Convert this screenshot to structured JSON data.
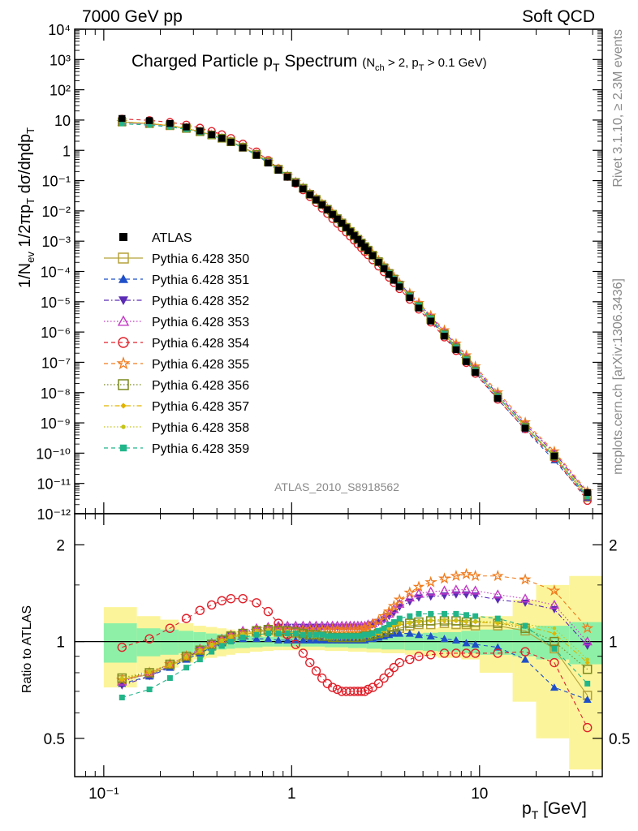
{
  "header": {
    "left": "7000 GeV pp",
    "right": "Soft QCD"
  },
  "title": {
    "main": "Charged Particle p",
    "main_sub": "T",
    "main_rest": " Spectrum",
    "cond_a": "(N",
    "cond_a_sub": "ch",
    "cond_b": " > 2, p",
    "cond_b_sub": "T",
    "cond_c": " > 0.1 GeV)"
  },
  "side_labels": {
    "rivet": "Rivet 3.1.10, ≥ 2.3M events",
    "mcplots": "mcplots.cern.ch [arXiv:1306.3436]"
  },
  "analysis_id": "ATLAS_2010_S8918562",
  "axis": {
    "ylabel_top": "1/N_ev 1/2πp_T dσ/dηdp_T",
    "ylabel_ratio": "Ratio to ATLAS",
    "xlabel": "p_T [GeV]",
    "x_ticks": [
      "10⁻¹",
      "1",
      "10"
    ],
    "y_top_ticks": [
      "10⁴",
      "10³",
      "10²",
      "10",
      "1",
      "10⁻¹",
      "10⁻²",
      "10⁻³",
      "10⁻⁴",
      "10⁻⁵",
      "10⁻⁶",
      "10⁻⁷",
      "10⁻⁸",
      "10⁻⁹",
      "10⁻¹⁰",
      "10⁻¹¹",
      "10⁻¹²"
    ],
    "y_ratio_ticks": [
      "2",
      "1",
      "0.5"
    ]
  },
  "legend": [
    {
      "label": "ATLAS",
      "color": "#000000",
      "marker": "square-filled",
      "dash": "none"
    },
    {
      "label": "Pythia 6.428 350",
      "color": "#b5a23a",
      "marker": "square-open",
      "dash": "solid"
    },
    {
      "label": "Pythia 6.428 351",
      "color": "#1f4fc8",
      "marker": "triangle-up-filled",
      "dash": "dashed"
    },
    {
      "label": "Pythia 6.428 352",
      "color": "#5b2bb5",
      "marker": "triangle-down-filled",
      "dash": "dashdot"
    },
    {
      "label": "Pythia 6.428 353",
      "color": "#c23bc4",
      "marker": "triangle-up-open",
      "dash": "dotted"
    },
    {
      "label": "Pythia 6.428 354",
      "color": "#e0202a",
      "marker": "circle-open",
      "dash": "dashed"
    },
    {
      "label": "Pythia 6.428 355",
      "color": "#f07c1e",
      "marker": "star-open",
      "dash": "dashed"
    },
    {
      "label": "Pythia 6.428 356",
      "color": "#7c8a1e",
      "marker": "square-open",
      "dash": "dotted"
    },
    {
      "label": "Pythia 6.428 357",
      "color": "#e0b400",
      "marker": "diamond-small",
      "dash": "dashdot"
    },
    {
      "label": "Pythia 6.428 358",
      "color": "#c4c41a",
      "marker": "dot",
      "dash": "dotted"
    },
    {
      "label": "Pythia 6.428 359",
      "color": "#22b58a",
      "marker": "square-filled-small",
      "dash": "dashed"
    }
  ],
  "chart_data": {
    "type": "scatter",
    "x_scale": "log",
    "xlim": [
      0.07,
      45
    ],
    "top_panel": {
      "y_scale": "log",
      "ylim": [
        1e-12,
        10000.0
      ],
      "data": {
        "x": [
          0.125,
          0.175,
          0.225,
          0.275,
          0.325,
          0.375,
          0.425,
          0.475,
          0.55,
          0.65,
          0.75,
          0.85,
          0.95,
          1.05,
          1.15,
          1.25,
          1.35,
          1.45,
          1.55,
          1.65,
          1.75,
          1.85,
          1.95,
          2.05,
          2.15,
          2.25,
          2.35,
          2.45,
          2.55,
          2.7,
          2.9,
          3.1,
          3.3,
          3.5,
          3.75,
          4.25,
          4.75,
          5.5,
          6.5,
          7.5,
          8.5,
          9.5,
          12.5,
          17.5,
          25.0,
          37.5
        ],
        "y": [
          11.3,
          9.6,
          7.7,
          5.9,
          4.4,
          3.3,
          2.5,
          1.85,
          1.2,
          0.68,
          0.38,
          0.22,
          0.13,
          0.082,
          0.053,
          0.034,
          0.023,
          0.0158,
          0.0109,
          0.0076,
          0.0054,
          0.0039,
          0.0028,
          0.00205,
          0.00152,
          0.00113,
          0.00085,
          0.00064,
          0.00049,
          0.00033,
          0.0002,
          0.000124,
          7.9e-05,
          5.1e-05,
          3.1e-05,
          1.35e-05,
          6.2e-06,
          2.3e-06,
          7.3e-07,
          2.6e-07,
          1.05e-07,
          4.6e-08,
          6.4e-09,
          6.7e-10,
          8e-11,
          5e-12
        ]
      }
    },
    "ratio_panel": {
      "y_scale": "log",
      "ylim": [
        0.38,
        2.5
      ],
      "band_x_edges": [
        0.1,
        0.15,
        0.2,
        0.25,
        0.3,
        0.35,
        0.4,
        0.45,
        0.5,
        0.6,
        0.7,
        0.8,
        0.9,
        1.0,
        1.5,
        2.0,
        2.5,
        3.0,
        4.0,
        5.0,
        6.0,
        8.0,
        10.0,
        15.0,
        20.0,
        30.0,
        45.0
      ],
      "band_inner": [
        0.14,
        0.1,
        0.09,
        0.08,
        0.07,
        0.06,
        0.055,
        0.05,
        0.045,
        0.04,
        0.035,
        0.035,
        0.035,
        0.035,
        0.04,
        0.045,
        0.05,
        0.055,
        0.06,
        0.065,
        0.07,
        0.08,
        0.09,
        0.1,
        0.12,
        0.15
      ],
      "band_outer": [
        0.28,
        0.2,
        0.17,
        0.14,
        0.12,
        0.11,
        0.1,
        0.09,
        0.08,
        0.07,
        0.065,
        0.06,
        0.06,
        0.06,
        0.065,
        0.07,
        0.075,
        0.08,
        0.09,
        0.1,
        0.11,
        0.12,
        0.2,
        0.35,
        0.5,
        0.6
      ],
      "series": [
        {
          "name": "Pythia 6.428 350",
          "ratio": [
            0.76,
            0.79,
            0.84,
            0.89,
            0.93,
            0.97,
            1.0,
            1.03,
            1.05,
            1.07,
            1.08,
            1.07,
            1.06,
            1.06,
            1.05,
            1.04,
            1.03,
            1.03,
            1.02,
            1.02,
            1.02,
            1.02,
            1.02,
            1.02,
            1.02,
            1.02,
            1.02,
            1.03,
            1.03,
            1.04,
            1.05,
            1.06,
            1.08,
            1.09,
            1.1,
            1.12,
            1.13,
            1.13,
            1.14,
            1.13,
            1.13,
            1.12,
            1.12,
            1.08,
            0.95,
            0.68
          ]
        },
        {
          "name": "Pythia 6.428 351",
          "ratio": [
            0.74,
            0.78,
            0.83,
            0.88,
            0.92,
            0.96,
            0.99,
            1.01,
            1.02,
            1.02,
            1.02,
            1.01,
            1.01,
            1.01,
            1.01,
            1.01,
            1.01,
            1.01,
            1.01,
            1.01,
            1.01,
            1.01,
            1.01,
            1.01,
            1.01,
            1.01,
            1.01,
            1.01,
            1.02,
            1.02,
            1.03,
            1.04,
            1.05,
            1.06,
            1.06,
            1.06,
            1.05,
            1.04,
            1.02,
            1.01,
            0.99,
            0.98,
            0.96,
            0.88,
            0.72,
            0.66
          ]
        },
        {
          "name": "Pythia 6.428 352",
          "ratio": [
            0.73,
            0.78,
            0.84,
            0.89,
            0.94,
            0.99,
            1.02,
            1.05,
            1.07,
            1.09,
            1.1,
            1.11,
            1.11,
            1.11,
            1.11,
            1.11,
            1.11,
            1.11,
            1.11,
            1.11,
            1.11,
            1.11,
            1.11,
            1.11,
            1.11,
            1.11,
            1.11,
            1.11,
            1.12,
            1.13,
            1.15,
            1.17,
            1.2,
            1.23,
            1.28,
            1.33,
            1.37,
            1.38,
            1.39,
            1.4,
            1.4,
            1.39,
            1.35,
            1.32,
            1.26,
            0.97
          ]
        },
        {
          "name": "Pythia 6.428 353",
          "ratio": [
            0.75,
            0.8,
            0.85,
            0.9,
            0.95,
            0.99,
            1.02,
            1.05,
            1.08,
            1.1,
            1.11,
            1.12,
            1.12,
            1.12,
            1.12,
            1.12,
            1.12,
            1.12,
            1.12,
            1.12,
            1.12,
            1.12,
            1.12,
            1.12,
            1.12,
            1.12,
            1.12,
            1.12,
            1.13,
            1.14,
            1.16,
            1.18,
            1.22,
            1.26,
            1.31,
            1.37,
            1.41,
            1.43,
            1.44,
            1.45,
            1.45,
            1.44,
            1.4,
            1.36,
            1.3,
            1.0
          ]
        },
        {
          "name": "Pythia 6.428 354",
          "ratio": [
            0.96,
            1.02,
            1.1,
            1.18,
            1.25,
            1.3,
            1.34,
            1.36,
            1.36,
            1.32,
            1.24,
            1.14,
            1.05,
            0.98,
            0.92,
            0.86,
            0.81,
            0.77,
            0.74,
            0.72,
            0.71,
            0.7,
            0.7,
            0.7,
            0.7,
            0.7,
            0.7,
            0.7,
            0.71,
            0.72,
            0.74,
            0.77,
            0.8,
            0.83,
            0.86,
            0.88,
            0.9,
            0.91,
            0.92,
            0.92,
            0.92,
            0.92,
            0.92,
            0.93,
            0.86,
            0.54
          ]
        },
        {
          "name": "Pythia 6.428 355",
          "ratio": [
            0.76,
            0.8,
            0.85,
            0.9,
            0.94,
            0.98,
            1.01,
            1.04,
            1.06,
            1.08,
            1.09,
            1.09,
            1.09,
            1.09,
            1.09,
            1.09,
            1.09,
            1.09,
            1.09,
            1.09,
            1.09,
            1.09,
            1.09,
            1.09,
            1.09,
            1.09,
            1.09,
            1.1,
            1.11,
            1.13,
            1.16,
            1.2,
            1.24,
            1.29,
            1.35,
            1.42,
            1.48,
            1.53,
            1.57,
            1.6,
            1.62,
            1.6,
            1.6,
            1.56,
            1.44,
            1.1
          ]
        },
        {
          "name": "Pythia 6.428 356",
          "ratio": [
            0.77,
            0.8,
            0.85,
            0.9,
            0.94,
            0.98,
            1.01,
            1.04,
            1.06,
            1.08,
            1.09,
            1.08,
            1.08,
            1.07,
            1.06,
            1.05,
            1.05,
            1.04,
            1.04,
            1.03,
            1.03,
            1.03,
            1.03,
            1.03,
            1.03,
            1.03,
            1.03,
            1.04,
            1.04,
            1.05,
            1.06,
            1.07,
            1.09,
            1.11,
            1.12,
            1.14,
            1.15,
            1.16,
            1.16,
            1.16,
            1.15,
            1.15,
            1.14,
            1.1,
            1.0,
            0.82
          ]
        },
        {
          "name": "Pythia 6.428 357",
          "ratio": [
            0.76,
            0.8,
            0.84,
            0.89,
            0.93,
            0.97,
            1.0,
            1.03,
            1.05,
            1.07,
            1.08,
            1.07,
            1.07,
            1.06,
            1.06,
            1.05,
            1.04,
            1.04,
            1.03,
            1.03,
            1.03,
            1.03,
            1.03,
            1.03,
            1.03,
            1.03,
            1.03,
            1.04,
            1.04,
            1.05,
            1.06,
            1.08,
            1.1,
            1.12,
            1.13,
            1.14,
            1.15,
            1.16,
            1.16,
            1.16,
            1.15,
            1.15,
            1.14,
            1.12,
            1.06,
            0.86
          ]
        },
        {
          "name": "Pythia 6.428 358",
          "ratio": [
            0.77,
            0.81,
            0.85,
            0.9,
            0.94,
            0.98,
            1.01,
            1.04,
            1.06,
            1.08,
            1.09,
            1.08,
            1.08,
            1.07,
            1.06,
            1.06,
            1.05,
            1.05,
            1.04,
            1.04,
            1.04,
            1.04,
            1.04,
            1.04,
            1.04,
            1.04,
            1.04,
            1.05,
            1.05,
            1.06,
            1.07,
            1.09,
            1.11,
            1.13,
            1.14,
            1.15,
            1.16,
            1.17,
            1.17,
            1.17,
            1.16,
            1.16,
            1.15,
            1.13,
            1.1,
            0.88
          ]
        },
        {
          "name": "Pythia 6.428 359",
          "ratio": [
            0.67,
            0.71,
            0.77,
            0.83,
            0.88,
            0.93,
            0.97,
            1.0,
            1.03,
            1.05,
            1.06,
            1.06,
            1.06,
            1.06,
            1.05,
            1.05,
            1.05,
            1.05,
            1.04,
            1.04,
            1.04,
            1.04,
            1.04,
            1.04,
            1.04,
            1.04,
            1.04,
            1.05,
            1.05,
            1.06,
            1.08,
            1.1,
            1.13,
            1.15,
            1.18,
            1.2,
            1.22,
            1.22,
            1.22,
            1.22,
            1.21,
            1.2,
            1.18,
            1.12,
            0.95,
            0.74
          ]
        }
      ]
    }
  }
}
